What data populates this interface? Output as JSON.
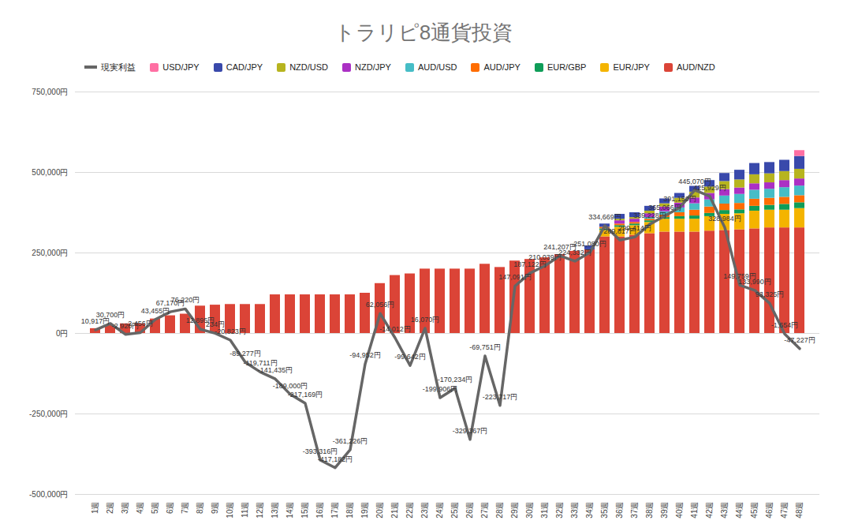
{
  "chart_data": {
    "type": "bar",
    "title": "トラリピ8通貨投資",
    "stacked": true,
    "grid": true,
    "legend": "top",
    "categories": [
      "1週",
      "2週",
      "3週",
      "4週",
      "5週",
      "6週",
      "7週",
      "8週",
      "9週",
      "10週",
      "11週",
      "12週",
      "13週",
      "14週",
      "15週",
      "16週",
      "17週",
      "18週",
      "19週",
      "20週",
      "21週",
      "22週",
      "23週",
      "24週",
      "25週",
      "26週",
      "27週",
      "28週",
      "29週",
      "30週",
      "31週",
      "32週",
      "33週",
      "34週",
      "35週",
      "36週",
      "37週",
      "38週",
      "39週",
      "40週",
      "41週",
      "42週",
      "43週",
      "44週",
      "45週",
      "46週",
      "47週",
      "48週"
    ],
    "ylim": [
      -500000,
      750000
    ],
    "yticks": [
      {
        "value": -500000,
        "label": "-500,000円"
      },
      {
        "value": -250000,
        "label": "-250,000円"
      },
      {
        "value": 0,
        "label": "0円"
      },
      {
        "value": 250000,
        "label": "250,000円"
      },
      {
        "value": 500000,
        "label": "500,000円"
      },
      {
        "value": 750000,
        "label": "750,000円"
      }
    ],
    "series": [
      {
        "name": "現実利益",
        "type": "line",
        "color": "#666666",
        "data_labels": true,
        "values": [
          10917,
          30700,
          -2920,
          2456,
          43455,
          67170,
          76220,
          12895,
          234,
          -20823,
          -89277,
          -119711,
          -141435,
          -189000,
          -217169,
          -393316,
          -417182,
          -361226,
          -94952,
          62056,
          -14012,
          -99642,
          16070,
          -199906,
          -170234,
          -329367,
          -69751,
          -223717,
          147091,
          187122,
          210039,
          241207,
          224332,
          251080,
          334669,
          289817,
          299414,
          339228,
          365066,
          391150,
          445070,
          425929,
          328984,
          149759,
          133990,
          93325,
          -1654,
          -47227
        ],
        "value_labels": [
          "10,917円",
          "30,700円",
          "-2,920円",
          "2,456円",
          "43,455円",
          "67,170円",
          "76,220円",
          "12,895円",
          "234円",
          "-20,823円",
          "-89,277円",
          "-119,711円",
          "-141,435円",
          "-189,000円",
          "-217,169円",
          "-393,316円",
          "-417,182円",
          "-361,226円",
          "-94,952円",
          "62,056円",
          "-14,012円",
          "-99,642円",
          "16,070円",
          "-199,906円",
          "-170,234円",
          "-329,367円",
          "-69,751円",
          "-223,717円",
          "147,091円",
          "187,122円",
          "210,039円",
          "241,207円",
          "224,332円",
          "251,080円",
          "334,669円",
          "289,817円",
          "299,414円",
          "339,228円",
          "365,066円",
          "391,150円",
          "445,070円",
          "425,929円",
          "328,984円",
          "149,759円",
          "133,990円",
          "93,325円",
          "-1,654円",
          "-47,227円"
        ]
      },
      {
        "name": "USD/JPY",
        "type": "bar",
        "color": "#ff6fa3",
        "values": [
          0,
          0,
          0,
          0,
          0,
          0,
          0,
          0,
          0,
          0,
          0,
          0,
          0,
          0,
          0,
          0,
          0,
          0,
          0,
          0,
          0,
          0,
          0,
          0,
          0,
          0,
          0,
          0,
          0,
          0,
          0,
          0,
          0,
          0,
          0,
          0,
          0,
          0,
          0,
          0,
          0,
          0,
          0,
          0,
          0,
          0,
          0,
          18000
        ]
      },
      {
        "name": "CAD/JPY",
        "type": "bar",
        "color": "#3949ab",
        "values": [
          0,
          0,
          0,
          0,
          0,
          0,
          0,
          0,
          0,
          0,
          0,
          0,
          0,
          0,
          0,
          0,
          0,
          0,
          0,
          0,
          0,
          0,
          0,
          0,
          0,
          0,
          0,
          0,
          0,
          0,
          0,
          0,
          0,
          12000,
          10000,
          15000,
          15000,
          15000,
          15000,
          15000,
          18000,
          20000,
          25000,
          30000,
          35000,
          35000,
          35000,
          40000
        ]
      },
      {
        "name": "NZD/USD",
        "type": "bar",
        "color": "#b7b41f",
        "values": [
          0,
          0,
          0,
          0,
          0,
          0,
          0,
          0,
          0,
          0,
          0,
          0,
          0,
          0,
          0,
          0,
          0,
          0,
          0,
          0,
          0,
          0,
          0,
          0,
          0,
          0,
          0,
          0,
          0,
          0,
          0,
          0,
          0,
          0,
          0,
          5000,
          5000,
          8000,
          10000,
          15000,
          18000,
          20000,
          25000,
          25000,
          28000,
          28000,
          28000,
          30000
        ]
      },
      {
        "name": "NZD/JPY",
        "type": "bar",
        "color": "#ab30c4",
        "values": [
          0,
          0,
          0,
          0,
          0,
          0,
          0,
          0,
          0,
          0,
          0,
          0,
          0,
          0,
          0,
          0,
          0,
          0,
          0,
          0,
          0,
          0,
          0,
          0,
          0,
          0,
          0,
          0,
          0,
          0,
          0,
          0,
          0,
          0,
          0,
          10000,
          10000,
          12000,
          15000,
          15000,
          18000,
          20000,
          20000,
          20000,
          20000,
          20000,
          22000,
          22000
        ]
      },
      {
        "name": "AUD/USD",
        "type": "bar",
        "color": "#46bdc6",
        "values": [
          0,
          0,
          0,
          0,
          0,
          0,
          0,
          0,
          0,
          0,
          0,
          0,
          0,
          0,
          0,
          0,
          0,
          0,
          0,
          0,
          0,
          0,
          0,
          0,
          0,
          0,
          0,
          0,
          0,
          0,
          0,
          0,
          0,
          0,
          0,
          0,
          0,
          5000,
          10000,
          15000,
          20000,
          22000,
          25000,
          28000,
          28000,
          28000,
          30000,
          30000
        ]
      },
      {
        "name": "AUD/JPY",
        "type": "bar",
        "color": "#ff6d01",
        "values": [
          0,
          0,
          0,
          0,
          0,
          0,
          0,
          0,
          0,
          0,
          0,
          0,
          0,
          0,
          0,
          0,
          0,
          0,
          0,
          0,
          0,
          0,
          0,
          0,
          0,
          0,
          0,
          0,
          0,
          0,
          0,
          0,
          0,
          0,
          5000,
          5000,
          5000,
          5000,
          8000,
          12000,
          18000,
          20000,
          20000,
          20000,
          22000,
          22000,
          22000,
          22000
        ]
      },
      {
        "name": "EUR/GBP",
        "type": "bar",
        "color": "#0f9d58",
        "values": [
          0,
          0,
          0,
          0,
          0,
          0,
          0,
          0,
          0,
          0,
          0,
          0,
          0,
          0,
          0,
          0,
          0,
          0,
          0,
          0,
          0,
          0,
          0,
          0,
          0,
          0,
          0,
          0,
          0,
          0,
          0,
          0,
          0,
          0,
          5000,
          5000,
          5000,
          5000,
          5000,
          8000,
          10000,
          10000,
          12000,
          12000,
          15000,
          15000,
          18000,
          18000
        ]
      },
      {
        "name": "EUR/JPY",
        "type": "bar",
        "color": "#f4b400",
        "values": [
          0,
          0,
          0,
          0,
          0,
          0,
          0,
          0,
          0,
          0,
          0,
          0,
          0,
          0,
          0,
          0,
          0,
          0,
          0,
          0,
          0,
          0,
          0,
          0,
          0,
          0,
          0,
          0,
          0,
          0,
          0,
          0,
          0,
          0,
          20000,
          30000,
          30000,
          35000,
          40000,
          40000,
          40000,
          45000,
          50000,
          50000,
          55000,
          55000,
          55000,
          60000
        ]
      },
      {
        "name": "AUD/NZD",
        "type": "bar",
        "color": "#db4437",
        "values": [
          15000,
          25000,
          30000,
          30000,
          45000,
          55000,
          60000,
          85000,
          88000,
          90000,
          90000,
          90000,
          120000,
          120000,
          120000,
          120000,
          120000,
          120000,
          125000,
          155000,
          180000,
          185000,
          200000,
          200000,
          200000,
          200000,
          215000,
          205000,
          225000,
          230000,
          235000,
          245000,
          255000,
          260000,
          300000,
          300000,
          305000,
          310000,
          315000,
          315000,
          315000,
          318000,
          320000,
          322000,
          325000,
          328000,
          328000,
          328000
        ]
      }
    ]
  }
}
